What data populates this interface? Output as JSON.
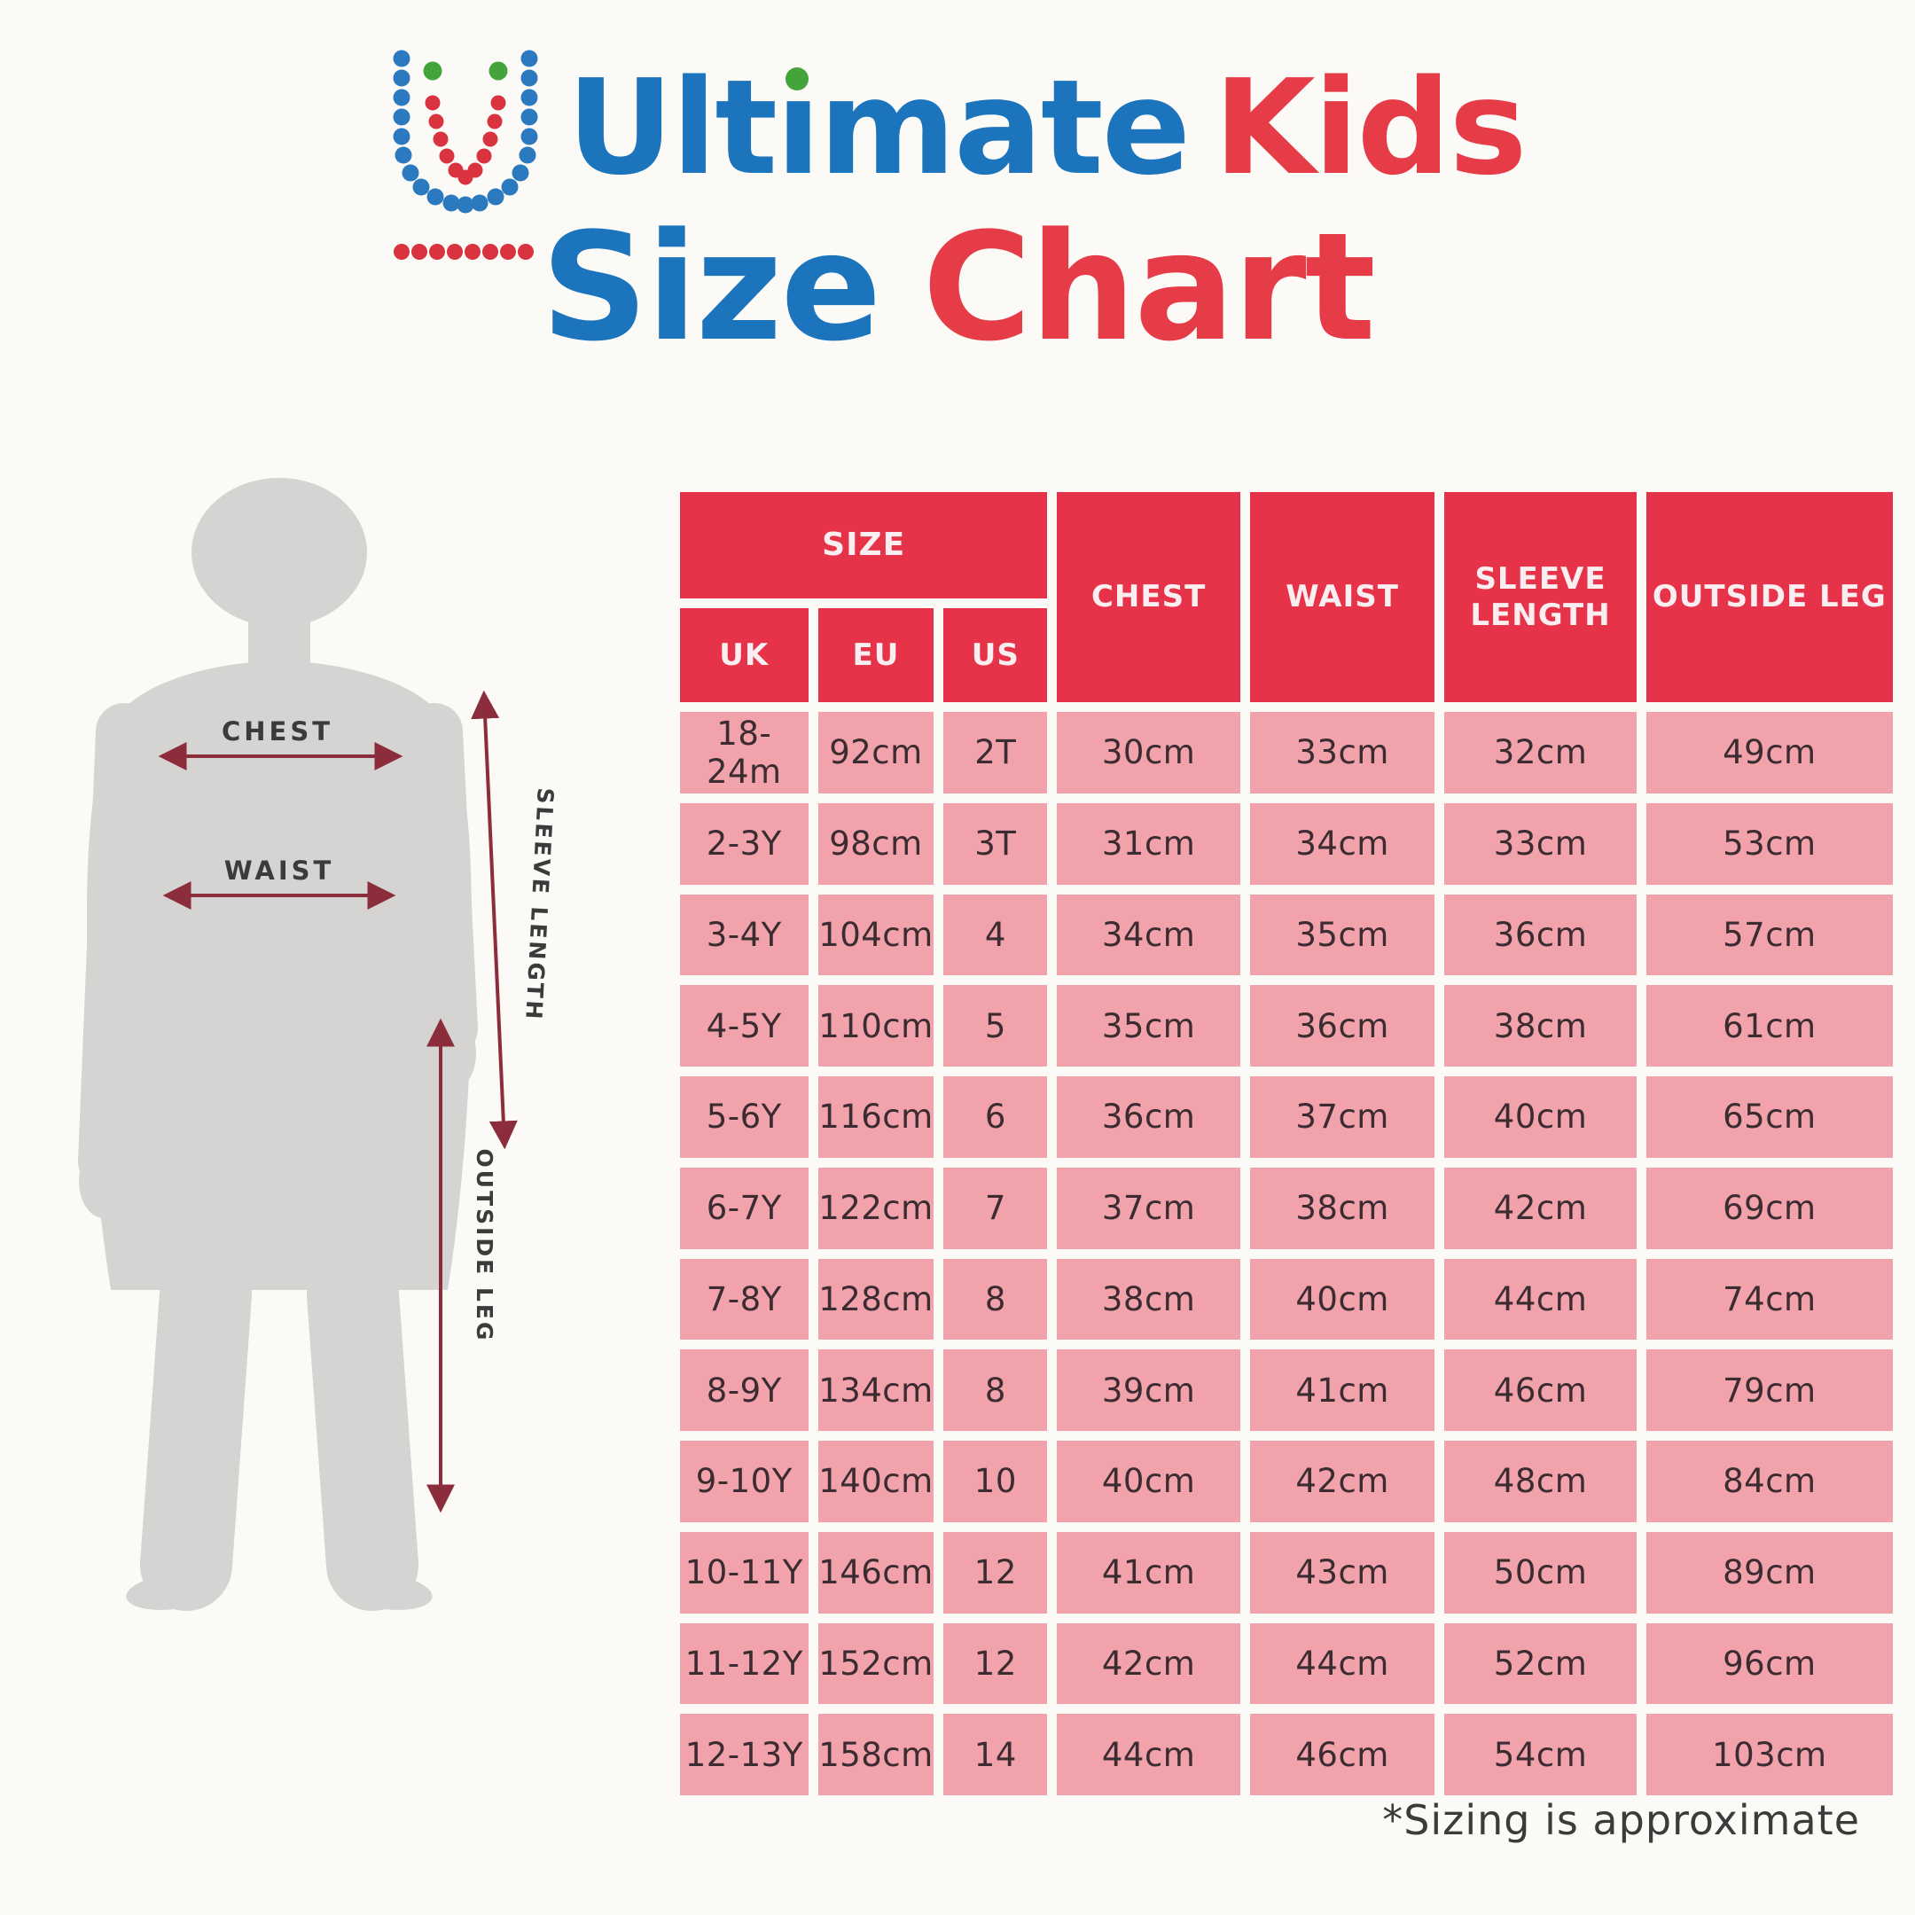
{
  "logo": {
    "icon": "dotted-u-logo",
    "ultimate_word": "Ultimate",
    "ultimate_parts": {
      "pre": "Ult",
      "dotless_i": "ı",
      "post": "mate"
    },
    "kids_word": "Kids"
  },
  "title": {
    "word1": "Size",
    "word2": "Chart"
  },
  "figure": {
    "labels": {
      "chest": "CHEST",
      "waist": "WAIST",
      "sleeve_length": "SLEEVE LENGTH",
      "outside_leg": "OUTSIDE LEG"
    }
  },
  "table": {
    "headers": {
      "size": "SIZE",
      "uk": "UK",
      "eu": "EU",
      "us": "US",
      "chest": "CHEST",
      "waist": "WAIST",
      "sleeve_length": "SLEEVE LENGTH",
      "outside_leg": "OUTSIDE LEG"
    },
    "rows": [
      {
        "uk": "18-24m",
        "eu": "92cm",
        "us": "2T",
        "chest": "30cm",
        "waist": "33cm",
        "sleeve_length": "32cm",
        "outside_leg": "49cm"
      },
      {
        "uk": "2-3Y",
        "eu": "98cm",
        "us": "3T",
        "chest": "31cm",
        "waist": "34cm",
        "sleeve_length": "33cm",
        "outside_leg": "53cm"
      },
      {
        "uk": "3-4Y",
        "eu": "104cm",
        "us": "4",
        "chest": "34cm",
        "waist": "35cm",
        "sleeve_length": "36cm",
        "outside_leg": "57cm"
      },
      {
        "uk": "4-5Y",
        "eu": "110cm",
        "us": "5",
        "chest": "35cm",
        "waist": "36cm",
        "sleeve_length": "38cm",
        "outside_leg": "61cm"
      },
      {
        "uk": "5-6Y",
        "eu": "116cm",
        "us": "6",
        "chest": "36cm",
        "waist": "37cm",
        "sleeve_length": "40cm",
        "outside_leg": "65cm"
      },
      {
        "uk": "6-7Y",
        "eu": "122cm",
        "us": "7",
        "chest": "37cm",
        "waist": "38cm",
        "sleeve_length": "42cm",
        "outside_leg": "69cm"
      },
      {
        "uk": "7-8Y",
        "eu": "128cm",
        "us": "8",
        "chest": "38cm",
        "waist": "40cm",
        "sleeve_length": "44cm",
        "outside_leg": "74cm"
      },
      {
        "uk": "8-9Y",
        "eu": "134cm",
        "us": "8",
        "chest": "39cm",
        "waist": "41cm",
        "sleeve_length": "46cm",
        "outside_leg": "79cm"
      },
      {
        "uk": "9-10Y",
        "eu": "140cm",
        "us": "10",
        "chest": "40cm",
        "waist": "42cm",
        "sleeve_length": "48cm",
        "outside_leg": "84cm"
      },
      {
        "uk": "10-11Y",
        "eu": "146cm",
        "us": "12",
        "chest": "41cm",
        "waist": "43cm",
        "sleeve_length": "50cm",
        "outside_leg": "89cm"
      },
      {
        "uk": "11-12Y",
        "eu": "152cm",
        "us": "12",
        "chest": "42cm",
        "waist": "44cm",
        "sleeve_length": "52cm",
        "outside_leg": "96cm"
      },
      {
        "uk": "12-13Y",
        "eu": "158cm",
        "us": "14",
        "chest": "44cm",
        "waist": "46cm",
        "sleeve_length": "54cm",
        "outside_leg": "103cm"
      }
    ]
  },
  "footnote": "*Sizing is approximate",
  "colors": {
    "header_red": "#e73349",
    "cell_pink": "#f1a2ab",
    "title_blue": "#1b74bc",
    "title_red": "#e63c47",
    "arrow_maroon": "#8c2d3c",
    "silhouette_gray": "#d5d4d2",
    "logo_dot_blue": "#2b79bf",
    "logo_dot_red": "#d8333e",
    "logo_dot_green": "#42a43b",
    "background": "#fbfaf7"
  },
  "chart_data": {
    "type": "table",
    "title": "UltimateKids Size Chart",
    "columns": [
      "UK",
      "EU",
      "US",
      "CHEST",
      "WAIST",
      "SLEEVE LENGTH",
      "OUTSIDE LEG"
    ],
    "rows": [
      [
        "18-24m",
        "92cm",
        "2T",
        "30cm",
        "33cm",
        "32cm",
        "49cm"
      ],
      [
        "2-3Y",
        "98cm",
        "3T",
        "31cm",
        "34cm",
        "33cm",
        "53cm"
      ],
      [
        "3-4Y",
        "104cm",
        "4",
        "34cm",
        "35cm",
        "36cm",
        "57cm"
      ],
      [
        "4-5Y",
        "110cm",
        "5",
        "35cm",
        "36cm",
        "38cm",
        "61cm"
      ],
      [
        "5-6Y",
        "116cm",
        "6",
        "36cm",
        "37cm",
        "40cm",
        "65cm"
      ],
      [
        "6-7Y",
        "122cm",
        "7",
        "37cm",
        "38cm",
        "42cm",
        "69cm"
      ],
      [
        "7-8Y",
        "128cm",
        "8",
        "38cm",
        "40cm",
        "44cm",
        "74cm"
      ],
      [
        "8-9Y",
        "134cm",
        "8",
        "39cm",
        "41cm",
        "46cm",
        "79cm"
      ],
      [
        "9-10Y",
        "140cm",
        "10",
        "40cm",
        "42cm",
        "48cm",
        "84cm"
      ],
      [
        "10-11Y",
        "146cm",
        "12",
        "41cm",
        "43cm",
        "50cm",
        "89cm"
      ],
      [
        "11-12Y",
        "152cm",
        "12",
        "42cm",
        "44cm",
        "52cm",
        "96cm"
      ],
      [
        "12-13Y",
        "158cm",
        "14",
        "44cm",
        "46cm",
        "54cm",
        "103cm"
      ]
    ],
    "footnote": "*Sizing is approximate"
  }
}
